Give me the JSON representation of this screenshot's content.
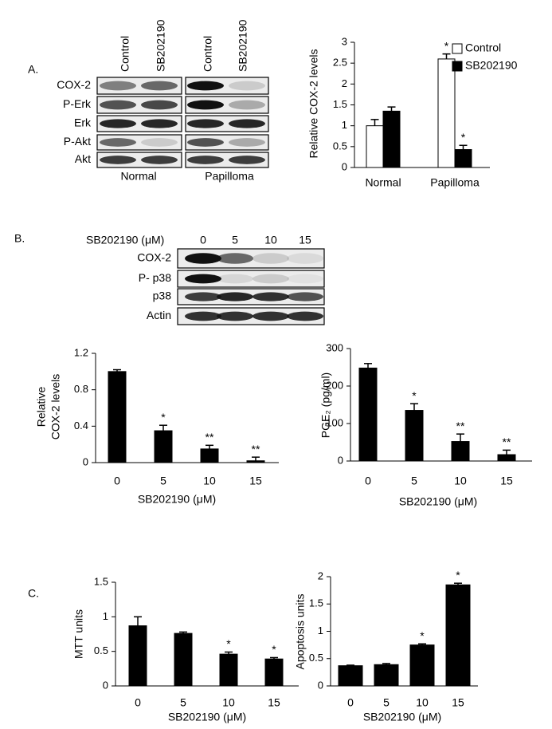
{
  "panel_labels": [
    "A.",
    "B.",
    "C."
  ],
  "blot_a": {
    "columns": [
      "Control",
      "SB202190",
      "Control",
      "SB202190"
    ],
    "rows": [
      "COX-2",
      "P-Erk",
      "Erk",
      "P-Akt",
      "Akt"
    ],
    "groups": [
      "Normal",
      "Papilloma"
    ]
  },
  "blot_b": {
    "treatment": "SB202190 (μM)",
    "lanes": [
      "0",
      "5",
      "10",
      "15"
    ],
    "rows": [
      "COX-2",
      "P- p38",
      "p38",
      "Actin"
    ]
  },
  "chart_data": [
    {
      "type": "bar",
      "ylabel": "Relative COX-2 levels",
      "categories": [
        "Normal",
        "Papilloma"
      ],
      "series": [
        {
          "name": "Control",
          "color": "#ffffff",
          "values": [
            1.0,
            2.6
          ],
          "errors": [
            0.15,
            0.12
          ],
          "significance": [
            null,
            "*"
          ]
        },
        {
          "name": "SB202190",
          "color": "#000000",
          "values": [
            1.35,
            0.43
          ],
          "errors": [
            0.1,
            0.1
          ],
          "significance": [
            null,
            "*"
          ]
        }
      ],
      "ylim": [
        0,
        3
      ],
      "yticks": [
        0,
        0.5,
        1,
        1.5,
        2,
        2.5,
        3
      ],
      "legend": "upper right"
    },
    {
      "type": "bar",
      "ylabel": [
        "Relative",
        "COX-2 levels"
      ],
      "xlabel": "SB202190 (μM)",
      "categories": [
        "0",
        "5",
        "10",
        "15"
      ],
      "series": [
        {
          "color": "#000000",
          "values": [
            1.0,
            0.35,
            0.15,
            0.02
          ],
          "errors": [
            0.02,
            0.06,
            0.04,
            0.04
          ],
          "significance": [
            null,
            "*",
            "**",
            "**"
          ]
        }
      ],
      "ylim": [
        0,
        1.2
      ],
      "yticks": [
        0,
        0.4,
        0.8,
        1.2
      ]
    },
    {
      "type": "bar",
      "ylabel": "PGE₂ (pg/ml)",
      "xlabel": "SB202190 (μM)",
      "categories": [
        "0",
        "5",
        "10",
        "15"
      ],
      "series": [
        {
          "color": "#000000",
          "values": [
            248,
            135,
            52,
            17
          ],
          "errors": [
            12,
            18,
            20,
            12
          ],
          "significance": [
            null,
            "*",
            "**",
            "**"
          ]
        }
      ],
      "ylim": [
        0,
        300
      ],
      "yticks": [
        0,
        100,
        200,
        300
      ]
    },
    {
      "type": "bar",
      "ylabel": "MTT units",
      "xlabel": "SB202190 (μM)",
      "categories": [
        "0",
        "5",
        "10",
        "15"
      ],
      "series": [
        {
          "color": "#000000",
          "values": [
            0.87,
            0.76,
            0.46,
            0.39
          ],
          "errors": [
            0.13,
            0.02,
            0.03,
            0.02
          ],
          "significance": [
            null,
            null,
            "*",
            "*"
          ]
        }
      ],
      "ylim": [
        0,
        1.5
      ],
      "yticks": [
        0,
        0.5,
        1,
        1.5
      ]
    },
    {
      "type": "bar",
      "ylabel": "Apoptosis units",
      "xlabel": "SB202190 (μM)",
      "categories": [
        "0",
        "5",
        "10",
        "15"
      ],
      "series": [
        {
          "color": "#000000",
          "values": [
            0.37,
            0.39,
            0.75,
            1.85
          ],
          "errors": [
            0.01,
            0.02,
            0.02,
            0.03
          ],
          "significance": [
            null,
            null,
            "*",
            "*"
          ]
        }
      ],
      "ylim": [
        0,
        2
      ],
      "yticks": [
        0,
        0.5,
        1,
        1.5,
        2
      ]
    }
  ]
}
